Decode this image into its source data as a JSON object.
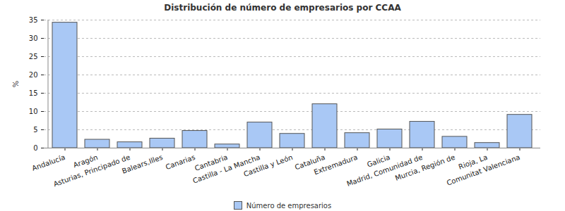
{
  "chart_data": {
    "type": "bar",
    "title": "Distribución de número de empresarios por CCAA",
    "y_label": "%",
    "categories": [
      "Andalucía",
      "Aragón",
      "Asturias, Principado de",
      "Balears,Illes",
      "Canarias",
      "Cantabria",
      "Castilla - La Mancha",
      "Castilla y León",
      "Cataluña",
      "Extremadura",
      "Galicia",
      "Madrid, Comunidad de",
      "Murcia, Región de",
      "Rioja, La",
      "Comunitat Valenciana"
    ],
    "series": [
      {
        "name": "Número de empresarios",
        "color": "#a9c8f5",
        "values": [
          34.3,
          2.3,
          1.6,
          2.6,
          4.7,
          1.0,
          7.0,
          3.9,
          12.0,
          4.1,
          5.1,
          7.2,
          3.1,
          1.4,
          9.1
        ]
      }
    ],
    "ylim": [
      0,
      35
    ],
    "yticks": [
      0,
      5,
      10,
      15,
      20,
      25,
      30,
      35
    ],
    "grid": true,
    "legend": "bottom"
  }
}
